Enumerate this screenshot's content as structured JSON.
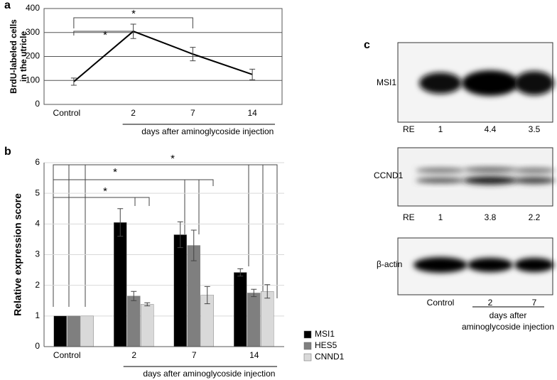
{
  "chart_data": [
    {
      "type": "line",
      "panel": "a",
      "ylabel": [
        "BrdU-labeled cells",
        "in the utricle"
      ],
      "categories": [
        "Control",
        "2",
        "7",
        "14"
      ],
      "values": [
        95,
        305,
        210,
        125
      ],
      "errors": [
        15,
        30,
        28,
        22
      ],
      "color": "#000000",
      "xlabel": "days after aminoglycoside injection",
      "ylim": [
        0,
        400
      ],
      "yticks": [
        0,
        100,
        200,
        300,
        400
      ],
      "grid": true,
      "annotations": [
        "*",
        "*"
      ]
    },
    {
      "type": "bar",
      "panel": "b",
      "ylabel": "Relative expression score",
      "categories": [
        "Control",
        "2",
        "7",
        "14"
      ],
      "series": [
        {
          "name": "MSI1",
          "color": "#000000",
          "values": [
            1,
            4.05,
            3.65,
            2.42
          ],
          "errors": [
            0,
            0.45,
            0.42,
            0.12
          ]
        },
        {
          "name": "HES5",
          "color": "#7f7f7f",
          "values": [
            1,
            1.65,
            3.3,
            1.75
          ],
          "errors": [
            0,
            0.15,
            0.5,
            0.12
          ]
        },
        {
          "name": "CNND1",
          "color": "#d9d9d9",
          "values": [
            1,
            1.38,
            1.68,
            1.8
          ],
          "errors": [
            0,
            0.05,
            0.28,
            0.22
          ]
        }
      ],
      "xlabel": "days after aminoglycoside injection",
      "ylim": [
        0,
        6
      ],
      "yticks": [
        0,
        1,
        2,
        3,
        4,
        5,
        6
      ],
      "grid": true,
      "legend": "right",
      "annotations": [
        "*",
        "*",
        "*"
      ]
    }
  ],
  "blot": {
    "panel": "c",
    "bands": [
      "MSI1",
      "CCND1",
      "β-actin"
    ],
    "re_label": "RE",
    "re_rows": [
      [
        "1",
        "4.4",
        "3.5"
      ],
      [
        "1",
        "3.8",
        "2.2"
      ]
    ],
    "lanes": [
      "Control",
      "2",
      "7"
    ],
    "xlabel": [
      "days after",
      "aminoglycoside injection"
    ]
  }
}
